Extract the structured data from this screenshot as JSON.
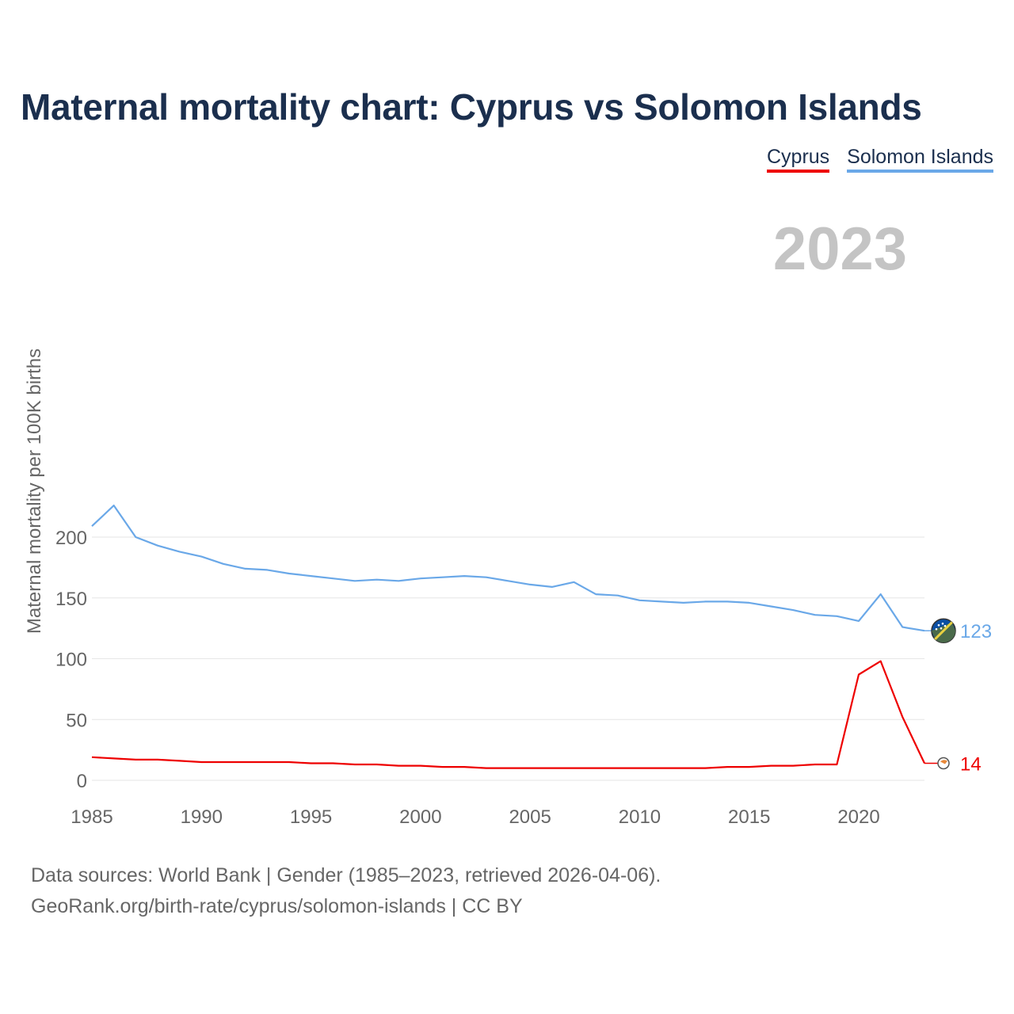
{
  "title": "Maternal mortality chart: Cyprus vs Solomon Islands",
  "legend": [
    {
      "label": "Cyprus",
      "color": "#ee0000"
    },
    {
      "label": "Solomon Islands",
      "color": "#6aa8e8"
    }
  ],
  "year_label": "2023",
  "source_line1": "Data sources: World Bank | Gender (1985–2023, retrieved 2026-04-06).",
  "source_line2": "GeoRank.org/birth-rate/cyprus/solomon-islands | CC BY",
  "chart_data": {
    "type": "line",
    "title": "Maternal mortality chart: Cyprus vs Solomon Islands",
    "xlabel": "",
    "ylabel": "Maternal mortality per 100K births",
    "xlim": [
      1985,
      2023
    ],
    "ylim": [
      0,
      225
    ],
    "x_ticks": [
      1985,
      1990,
      1995,
      2000,
      2005,
      2010,
      2015,
      2020
    ],
    "y_ticks": [
      0,
      50,
      100,
      150,
      200
    ],
    "grid": true,
    "legend_position": "top-right",
    "x": [
      1985,
      1986,
      1987,
      1988,
      1989,
      1990,
      1991,
      1992,
      1993,
      1994,
      1995,
      1996,
      1997,
      1998,
      1999,
      2000,
      2001,
      2002,
      2003,
      2004,
      2005,
      2006,
      2007,
      2008,
      2009,
      2010,
      2011,
      2012,
      2013,
      2014,
      2015,
      2016,
      2017,
      2018,
      2019,
      2020,
      2021,
      2022,
      2023
    ],
    "series": [
      {
        "name": "Cyprus",
        "color": "#ee0000",
        "values": [
          19,
          18,
          17,
          17,
          16,
          15,
          15,
          15,
          15,
          15,
          14,
          14,
          13,
          13,
          12,
          12,
          11,
          11,
          10,
          10,
          10,
          10,
          10,
          10,
          10,
          10,
          10,
          10,
          10,
          11,
          11,
          12,
          12,
          13,
          13,
          87,
          98,
          52,
          14
        ],
        "end_label": "14"
      },
      {
        "name": "Solomon Islands",
        "color": "#6aa8e8",
        "values": [
          209,
          226,
          200,
          193,
          188,
          184,
          178,
          174,
          173,
          170,
          168,
          166,
          164,
          165,
          164,
          166,
          167,
          168,
          167,
          164,
          161,
          159,
          163,
          153,
          152,
          148,
          147,
          146,
          147,
          147,
          146,
          143,
          140,
          136,
          135,
          131,
          153,
          126,
          123
        ],
        "end_label": "123"
      }
    ]
  }
}
